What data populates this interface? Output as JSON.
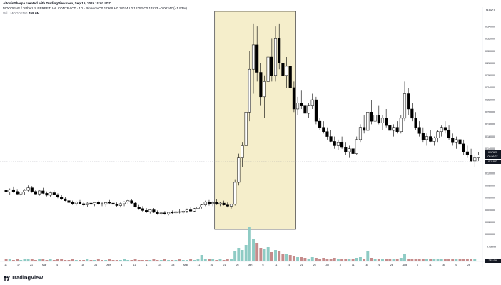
{
  "header": {
    "credit": "AltcoinSherpa created with TradingView.com, Sep 16, 2025 18:03 UTC",
    "symbol": "MOODENG / TetherUS PERPETUAL CONTRACT · 1D · Binance",
    "o": "O0.17969",
    "h": "H0.18074",
    "l": "L0.16752",
    "c": "C0.17623",
    "chg": "−0.00347 (−1.93%)",
    "vol_label": "Vol · MOODENG",
    "vol_value": "458.6M"
  },
  "brand": "TradingView",
  "colors": {
    "up": "#ffffff",
    "down": "#000000",
    "vol_up": "#8ecbc4",
    "vol_down": "#c58b8b",
    "highlight": "#f5eecb",
    "highlight_border": "#1a1a1a",
    "crosshair": "#9598a1"
  },
  "chart_data": {
    "type": "candlestick",
    "currency": "USDT",
    "price_axis_labels": [
      "0.34000",
      "0.32000",
      "0.30000",
      "0.28000",
      "0.26000",
      "0.24000",
      "0.22000",
      "0.20000",
      "0.18000",
      "0.16000",
      "0.14000",
      "0.12000",
      "0.10000",
      "0.08000",
      "0.06000",
      "0.04000",
      "0.02000",
      "0.00000",
      "−0.02000"
    ],
    "price_range": [
      -0.02,
      0.36
    ],
    "current_price": "0.17623",
    "current_price_sub": "05:56:27",
    "crosshair_price": "0.11882",
    "volume_axis_value": "283.9M",
    "x_ticks": [
      "11",
      "17",
      "21",
      "Mar",
      "4",
      "10",
      "16",
      "24",
      "Apr",
      "4",
      "11",
      "17",
      "24",
      "28",
      "May",
      "11",
      "16",
      "21",
      "26",
      "Jun",
      "6",
      "11",
      "16",
      "21",
      "26",
      "Jul",
      "8",
      "11",
      "16",
      "21",
      "26",
      "Aug",
      "6",
      "11",
      "16",
      "21",
      "26"
    ],
    "highlight_region": {
      "start_index": 57,
      "end_index": 78
    },
    "ohlc": [
      [
        0.072,
        0.077,
        0.066,
        0.069
      ],
      [
        0.069,
        0.075,
        0.065,
        0.073
      ],
      [
        0.073,
        0.078,
        0.068,
        0.07
      ],
      [
        0.07,
        0.074,
        0.064,
        0.066
      ],
      [
        0.066,
        0.071,
        0.062,
        0.069
      ],
      [
        0.069,
        0.074,
        0.065,
        0.072
      ],
      [
        0.072,
        0.08,
        0.07,
        0.076
      ],
      [
        0.076,
        0.079,
        0.068,
        0.07
      ],
      [
        0.07,
        0.073,
        0.064,
        0.066
      ],
      [
        0.066,
        0.072,
        0.063,
        0.071
      ],
      [
        0.071,
        0.076,
        0.066,
        0.067
      ],
      [
        0.067,
        0.07,
        0.062,
        0.064
      ],
      [
        0.064,
        0.07,
        0.061,
        0.068
      ],
      [
        0.068,
        0.072,
        0.064,
        0.065
      ],
      [
        0.065,
        0.067,
        0.059,
        0.061
      ],
      [
        0.061,
        0.064,
        0.056,
        0.058
      ],
      [
        0.058,
        0.061,
        0.054,
        0.055
      ],
      [
        0.055,
        0.058,
        0.05,
        0.052
      ],
      [
        0.052,
        0.055,
        0.048,
        0.05
      ],
      [
        0.05,
        0.054,
        0.047,
        0.053
      ],
      [
        0.053,
        0.056,
        0.049,
        0.05
      ],
      [
        0.05,
        0.053,
        0.046,
        0.048
      ],
      [
        0.048,
        0.052,
        0.045,
        0.051
      ],
      [
        0.051,
        0.054,
        0.047,
        0.049
      ],
      [
        0.049,
        0.053,
        0.046,
        0.052
      ],
      [
        0.052,
        0.055,
        0.048,
        0.05
      ],
      [
        0.05,
        0.053,
        0.046,
        0.049
      ],
      [
        0.049,
        0.053,
        0.045,
        0.052
      ],
      [
        0.052,
        0.056,
        0.049,
        0.051
      ],
      [
        0.051,
        0.054,
        0.047,
        0.049
      ],
      [
        0.049,
        0.052,
        0.045,
        0.047
      ],
      [
        0.047,
        0.052,
        0.044,
        0.05
      ],
      [
        0.05,
        0.054,
        0.046,
        0.053
      ],
      [
        0.053,
        0.057,
        0.049,
        0.055
      ],
      [
        0.055,
        0.058,
        0.05,
        0.051
      ],
      [
        0.051,
        0.053,
        0.044,
        0.045
      ],
      [
        0.045,
        0.048,
        0.04,
        0.042
      ],
      [
        0.042,
        0.046,
        0.037,
        0.039
      ],
      [
        0.039,
        0.043,
        0.035,
        0.037
      ],
      [
        0.037,
        0.041,
        0.034,
        0.04
      ],
      [
        0.04,
        0.043,
        0.035,
        0.036
      ],
      [
        0.036,
        0.039,
        0.032,
        0.034
      ],
      [
        0.034,
        0.037,
        0.031,
        0.035
      ],
      [
        0.035,
        0.038,
        0.032,
        0.033
      ],
      [
        0.033,
        0.037,
        0.031,
        0.036
      ],
      [
        0.036,
        0.039,
        0.033,
        0.035
      ],
      [
        0.035,
        0.038,
        0.032,
        0.037
      ],
      [
        0.037,
        0.041,
        0.034,
        0.036
      ],
      [
        0.036,
        0.039,
        0.033,
        0.038
      ],
      [
        0.038,
        0.042,
        0.035,
        0.04
      ],
      [
        0.04,
        0.044,
        0.036,
        0.038
      ],
      [
        0.038,
        0.043,
        0.036,
        0.042
      ],
      [
        0.042,
        0.047,
        0.04,
        0.045
      ],
      [
        0.045,
        0.05,
        0.042,
        0.048
      ],
      [
        0.048,
        0.055,
        0.046,
        0.053
      ],
      [
        0.053,
        0.056,
        0.047,
        0.05
      ],
      [
        0.05,
        0.054,
        0.046,
        0.052
      ],
      [
        0.052,
        0.057,
        0.048,
        0.049
      ],
      [
        0.049,
        0.053,
        0.046,
        0.051
      ],
      [
        0.051,
        0.055,
        0.047,
        0.048
      ],
      [
        0.048,
        0.052,
        0.044,
        0.046
      ],
      [
        0.046,
        0.05,
        0.042,
        0.049
      ],
      [
        0.049,
        0.09,
        0.047,
        0.085
      ],
      [
        0.085,
        0.132,
        0.08,
        0.125
      ],
      [
        0.125,
        0.15,
        0.11,
        0.145
      ],
      [
        0.145,
        0.21,
        0.14,
        0.2
      ],
      [
        0.2,
        0.3,
        0.185,
        0.27
      ],
      [
        0.27,
        0.345,
        0.23,
        0.31
      ],
      [
        0.31,
        0.34,
        0.25,
        0.265
      ],
      [
        0.265,
        0.28,
        0.21,
        0.225
      ],
      [
        0.225,
        0.26,
        0.19,
        0.25
      ],
      [
        0.25,
        0.3,
        0.24,
        0.29
      ],
      [
        0.29,
        0.32,
        0.25,
        0.26
      ],
      [
        0.26,
        0.34,
        0.25,
        0.32
      ],
      [
        0.32,
        0.345,
        0.27,
        0.28
      ],
      [
        0.28,
        0.3,
        0.25,
        0.26
      ],
      [
        0.26,
        0.29,
        0.24,
        0.275
      ],
      [
        0.275,
        0.285,
        0.23,
        0.24
      ],
      [
        0.24,
        0.25,
        0.2,
        0.205
      ],
      [
        0.205,
        0.225,
        0.195,
        0.215
      ],
      [
        0.215,
        0.235,
        0.205,
        0.21
      ],
      [
        0.21,
        0.225,
        0.195,
        0.198
      ],
      [
        0.198,
        0.215,
        0.19,
        0.21
      ],
      [
        0.21,
        0.23,
        0.205,
        0.22
      ],
      [
        0.22,
        0.225,
        0.18,
        0.185
      ],
      [
        0.185,
        0.19,
        0.17,
        0.175
      ],
      [
        0.175,
        0.185,
        0.165,
        0.168
      ],
      [
        0.168,
        0.175,
        0.155,
        0.16
      ],
      [
        0.16,
        0.17,
        0.15,
        0.152
      ],
      [
        0.152,
        0.16,
        0.14,
        0.145
      ],
      [
        0.145,
        0.155,
        0.138,
        0.15
      ],
      [
        0.15,
        0.16,
        0.14,
        0.142
      ],
      [
        0.142,
        0.15,
        0.13,
        0.135
      ],
      [
        0.135,
        0.145,
        0.125,
        0.14
      ],
      [
        0.14,
        0.15,
        0.13,
        0.132
      ],
      [
        0.132,
        0.16,
        0.13,
        0.155
      ],
      [
        0.155,
        0.18,
        0.15,
        0.175
      ],
      [
        0.175,
        0.195,
        0.165,
        0.17
      ],
      [
        0.17,
        0.24,
        0.16,
        0.2
      ],
      [
        0.2,
        0.22,
        0.18,
        0.185
      ],
      [
        0.185,
        0.2,
        0.175,
        0.195
      ],
      [
        0.195,
        0.21,
        0.18,
        0.182
      ],
      [
        0.182,
        0.195,
        0.17,
        0.19
      ],
      [
        0.19,
        0.205,
        0.175,
        0.178
      ],
      [
        0.178,
        0.19,
        0.165,
        0.17
      ],
      [
        0.17,
        0.18,
        0.16,
        0.175
      ],
      [
        0.175,
        0.185,
        0.165,
        0.168
      ],
      [
        0.168,
        0.195,
        0.165,
        0.19
      ],
      [
        0.19,
        0.25,
        0.185,
        0.23
      ],
      [
        0.23,
        0.24,
        0.195,
        0.205
      ],
      [
        0.205,
        0.215,
        0.185,
        0.19
      ],
      [
        0.19,
        0.2,
        0.17,
        0.175
      ],
      [
        0.175,
        0.185,
        0.16,
        0.165
      ],
      [
        0.165,
        0.175,
        0.15,
        0.155
      ],
      [
        0.155,
        0.165,
        0.145,
        0.16
      ],
      [
        0.16,
        0.17,
        0.15,
        0.152
      ],
      [
        0.152,
        0.16,
        0.145,
        0.158
      ],
      [
        0.158,
        0.17,
        0.15,
        0.168
      ],
      [
        0.168,
        0.178,
        0.16,
        0.175
      ],
      [
        0.175,
        0.185,
        0.165,
        0.17
      ],
      [
        0.17,
        0.178,
        0.155,
        0.158
      ],
      [
        0.158,
        0.165,
        0.145,
        0.15
      ],
      [
        0.15,
        0.16,
        0.14,
        0.155
      ],
      [
        0.155,
        0.165,
        0.145,
        0.148
      ],
      [
        0.148,
        0.155,
        0.13,
        0.135
      ],
      [
        0.135,
        0.145,
        0.125,
        0.13
      ],
      [
        0.13,
        0.14,
        0.118,
        0.12
      ],
      [
        0.12,
        0.13,
        0.11,
        0.125
      ],
      [
        0.125,
        0.135,
        0.12,
        0.13
      ]
    ],
    "volume": [
      2,
      2,
      1,
      2,
      1,
      2,
      3,
      2,
      1,
      2,
      2,
      1,
      2,
      1,
      2,
      2,
      1,
      1,
      2,
      1,
      1,
      1,
      2,
      1,
      1,
      2,
      1,
      1,
      2,
      1,
      1,
      1,
      2,
      1,
      1,
      2,
      1,
      1,
      1,
      1,
      2,
      1,
      1,
      2,
      1,
      1,
      1,
      2,
      1,
      1,
      2,
      1,
      2,
      8,
      3,
      2,
      2,
      1,
      2,
      1,
      3,
      2,
      14,
      18,
      15,
      22,
      48,
      30,
      25,
      18,
      16,
      20,
      12,
      15,
      14,
      10,
      9,
      8,
      7,
      5,
      6,
      4,
      3,
      5,
      4,
      3,
      4,
      3,
      3,
      4,
      3,
      2,
      3,
      2,
      2,
      4,
      5,
      3,
      14,
      4,
      3,
      2,
      3,
      2,
      2,
      3,
      2,
      4,
      9,
      3,
      2,
      2,
      2,
      2,
      3,
      2,
      2,
      3,
      3,
      2,
      2,
      2,
      2,
      2,
      3,
      2,
      2,
      2
    ]
  }
}
